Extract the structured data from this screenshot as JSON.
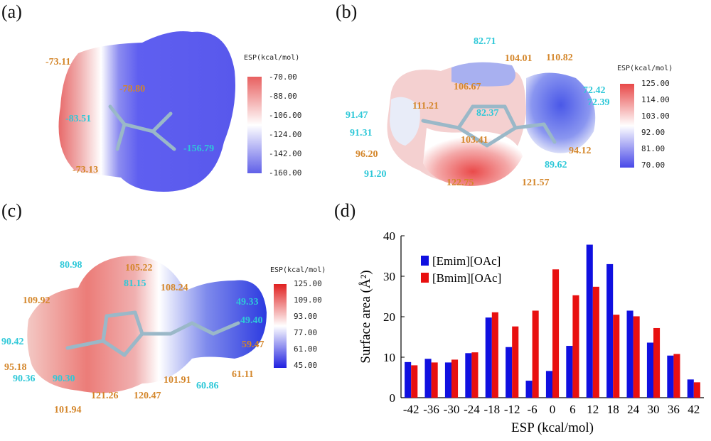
{
  "panels": {
    "a": {
      "label": "(a)",
      "colorbar": {
        "title": "ESP(kcal/mol)",
        "ticks": [
          "-70.00",
          "-88.00",
          "-106.00",
          "-124.00",
          "-142.00",
          "-160.00"
        ],
        "top_color": "#e85050",
        "bottom_color": "#5050e8"
      },
      "labels": [
        {
          "text": "-73.11",
          "color": "orange"
        },
        {
          "text": "-78.80",
          "color": "orange"
        },
        {
          "text": "-83.51",
          "color": "cyan"
        },
        {
          "text": "-156.79",
          "color": "cyan"
        },
        {
          "text": "-73.13",
          "color": "orange"
        }
      ]
    },
    "b": {
      "label": "(b)",
      "colorbar": {
        "title": "ESP(kcal/mol)",
        "ticks": [
          "125.00",
          "114.00",
          "103.00",
          "92.00",
          "81.00",
          "70.00"
        ]
      },
      "labels": [
        {
          "text": "82.71",
          "color": "cyan"
        },
        {
          "text": "104.01",
          "color": "orange"
        },
        {
          "text": "110.82",
          "color": "orange"
        },
        {
          "text": "106.67",
          "color": "orange"
        },
        {
          "text": "111.21",
          "color": "orange"
        },
        {
          "text": "72.42",
          "color": "cyan"
        },
        {
          "text": "72.39",
          "color": "cyan"
        },
        {
          "text": "82.37",
          "color": "cyan"
        },
        {
          "text": "91.47",
          "color": "cyan"
        },
        {
          "text": "91.31",
          "color": "cyan"
        },
        {
          "text": "103.41",
          "color": "orange"
        },
        {
          "text": "96.20",
          "color": "orange"
        },
        {
          "text": "94.12",
          "color": "orange"
        },
        {
          "text": "89.62",
          "color": "cyan"
        },
        {
          "text": "91.20",
          "color": "cyan"
        },
        {
          "text": "122.75",
          "color": "orange"
        },
        {
          "text": "121.57",
          "color": "orange"
        }
      ]
    },
    "c": {
      "label": "(c)",
      "colorbar": {
        "title": "ESP(kcal/mol)",
        "ticks": [
          "125.00",
          "109.00",
          "93.00",
          "77.00",
          "61.00",
          "45.00"
        ]
      },
      "labels": [
        {
          "text": "80.98",
          "color": "cyan"
        },
        {
          "text": "105.22",
          "color": "orange"
        },
        {
          "text": "81.15",
          "color": "cyan"
        },
        {
          "text": "108.24",
          "color": "orange"
        },
        {
          "text": "109.92",
          "color": "orange"
        },
        {
          "text": "49.33",
          "color": "cyan"
        },
        {
          "text": "49.40",
          "color": "cyan"
        },
        {
          "text": "59.47",
          "color": "orange"
        },
        {
          "text": "90.42",
          "color": "cyan"
        },
        {
          "text": "95.18",
          "color": "orange"
        },
        {
          "text": "90.36",
          "color": "cyan"
        },
        {
          "text": "90.30",
          "color": "cyan"
        },
        {
          "text": "101.91",
          "color": "orange"
        },
        {
          "text": "60.86",
          "color": "cyan"
        },
        {
          "text": "61.11",
          "color": "orange"
        },
        {
          "text": "101.94",
          "color": "orange"
        },
        {
          "text": "121.26",
          "color": "orange"
        },
        {
          "text": "120.47",
          "color": "orange"
        }
      ]
    },
    "d": {
      "label": "(d)"
    }
  },
  "label_colors": {
    "orange": "#d4862a",
    "cyan": "#2ec8d8"
  },
  "chart_data": {
    "type": "bar",
    "title": "",
    "xlabel": "ESP (kcal/mol)",
    "ylabel": "Surface area (Å²)",
    "categories": [
      "-42",
      "-36",
      "-30",
      "-24",
      "-18",
      "-12",
      "-6",
      "0",
      "6",
      "12",
      "18",
      "24",
      "30",
      "36",
      "42"
    ],
    "ylim": [
      0,
      40
    ],
    "yticks": [
      "0",
      "10",
      "20",
      "30",
      "40"
    ],
    "legend_position": "top-left",
    "series": [
      {
        "name": "[Emim][OAc]",
        "color": "#1010e0",
        "values": [
          8.8,
          9.6,
          8.7,
          11.0,
          19.8,
          12.5,
          4.2,
          6.6,
          12.8,
          37.8,
          33.0,
          21.5,
          13.6,
          10.4,
          4.5
        ]
      },
      {
        "name": "[Bmim][OAc]",
        "color": "#e81010",
        "values": [
          8.0,
          8.7,
          9.4,
          11.2,
          21.1,
          17.6,
          21.5,
          31.7,
          25.3,
          27.4,
          20.5,
          20.1,
          17.2,
          10.8,
          3.8
        ]
      }
    ]
  }
}
